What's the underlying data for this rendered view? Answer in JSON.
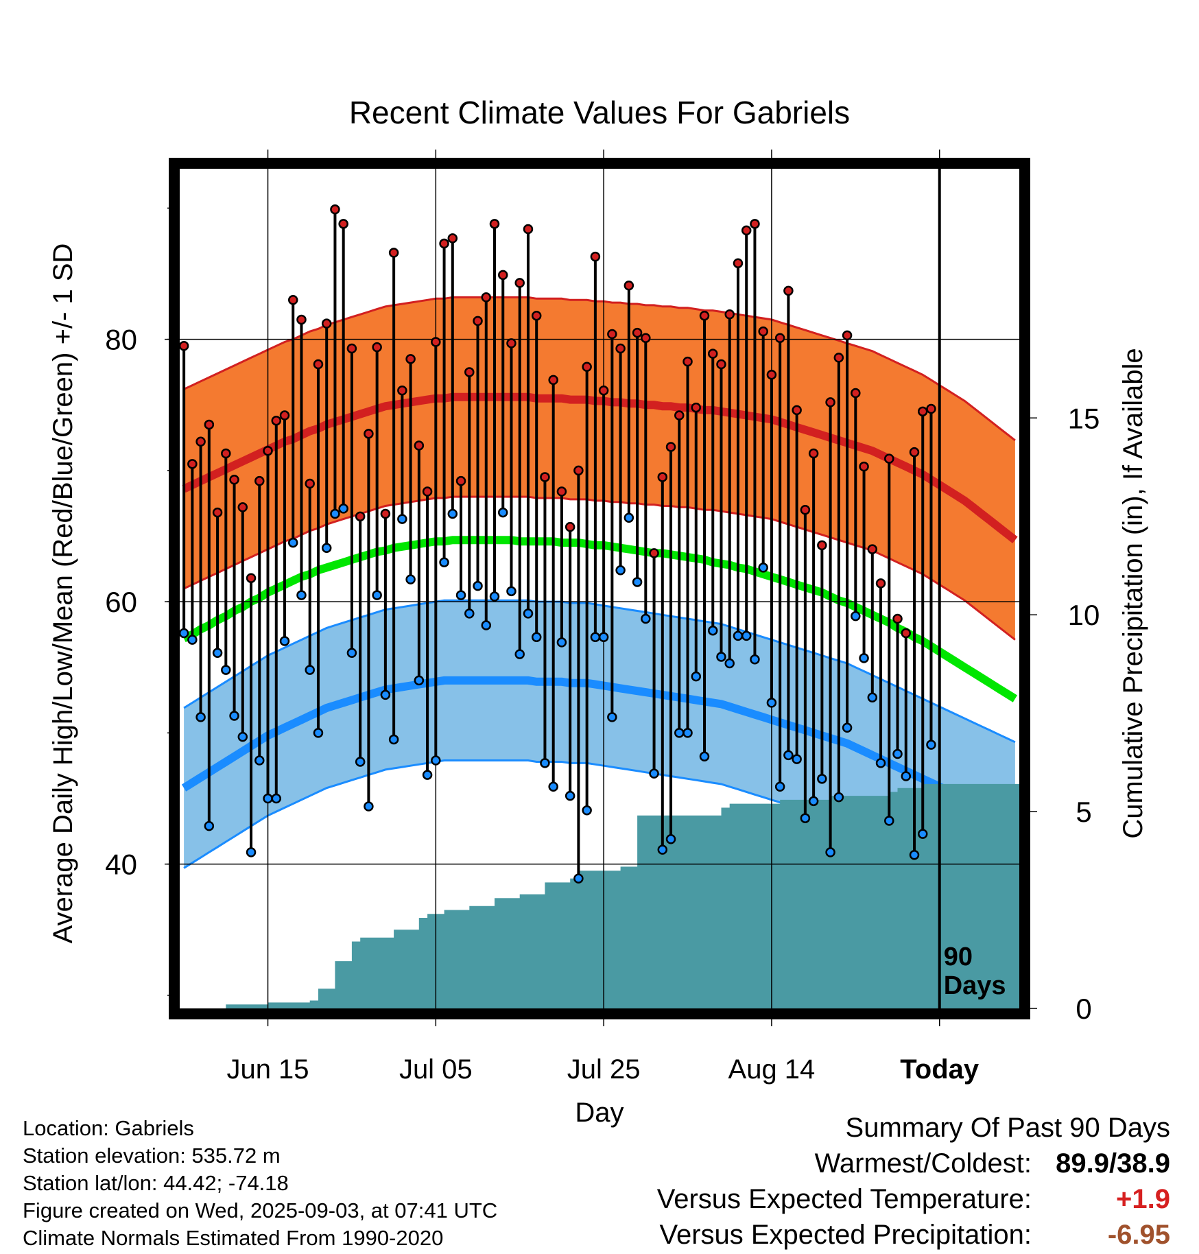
{
  "chart_data": {
    "type": "line",
    "title": "Recent Climate Values For Gabriels",
    "xlabel": "Day",
    "ylabel": "Average Daily High/Low/Mean (Red/Blue/Green) +/- 1 SD",
    "y2label": "Cumulative Precipitation (in), If Available",
    "x_tick_labels": [
      "Jun 15",
      "Jul 05",
      "Jul 25",
      "Aug 14",
      "Today"
    ],
    "x_tick_days": [
      10,
      30,
      50,
      70,
      90
    ],
    "xlim": [
      -0.5,
      99.5
    ],
    "y_ticks": [
      40,
      60,
      80
    ],
    "ylim": [
      29,
      93
    ],
    "y2_ticks": [
      0,
      5,
      10,
      15
    ],
    "y2_scale_per_temp": 0.3333,
    "today_marker_label": [
      "90",
      "Days"
    ],
    "normals": {
      "high_mean": [
        68.6,
        68.9,
        69.2,
        69.5,
        69.8,
        70.1,
        70.4,
        70.7,
        71.0,
        71.3,
        71.6,
        71.9,
        72.2,
        72.4,
        72.7,
        73.0,
        73.2,
        73.5,
        73.7,
        73.9,
        74.1,
        74.3,
        74.5,
        74.7,
        74.9,
        75.0,
        75.1,
        75.2,
        75.3,
        75.4,
        75.5,
        75.5,
        75.6,
        75.6,
        75.6,
        75.6,
        75.6,
        75.6,
        75.6,
        75.6,
        75.6,
        75.6,
        75.5,
        75.5,
        75.5,
        75.5,
        75.4,
        75.4,
        75.4,
        75.3,
        75.3,
        75.2,
        75.2,
        75.1,
        75.1,
        75.0,
        75.0,
        74.9,
        74.9,
        74.8,
        74.8,
        74.7,
        74.6,
        74.6,
        74.5,
        74.4,
        74.3,
        74.2,
        74.1,
        74.0,
        73.9,
        73.7,
        73.5,
        73.3,
        73.1,
        72.9,
        72.7,
        72.5,
        72.3,
        72.1,
        71.9,
        71.7,
        71.5,
        71.2,
        70.9,
        70.6,
        70.3,
        70.0,
        69.7,
        69.3,
        68.9,
        68.5,
        68.1,
        67.7,
        67.2,
        66.7,
        66.2,
        65.7,
        65.2,
        64.7
      ],
      "high_sd": 7.6,
      "low_mean": [
        45.8,
        46.2,
        46.6,
        47.0,
        47.4,
        47.8,
        48.2,
        48.6,
        49.0,
        49.4,
        49.8,
        50.1,
        50.4,
        50.7,
        51.0,
        51.3,
        51.6,
        51.9,
        52.1,
        52.3,
        52.5,
        52.7,
        52.9,
        53.1,
        53.3,
        53.4,
        53.5,
        53.6,
        53.7,
        53.8,
        53.9,
        54.0,
        54.0,
        54.0,
        54.0,
        54.0,
        54.0,
        54.0,
        54.0,
        54.0,
        54.0,
        54.0,
        53.9,
        53.9,
        53.9,
        53.9,
        53.8,
        53.8,
        53.8,
        53.7,
        53.6,
        53.5,
        53.4,
        53.3,
        53.2,
        53.1,
        53.0,
        52.9,
        52.8,
        52.7,
        52.6,
        52.5,
        52.4,
        52.3,
        52.2,
        52.0,
        51.8,
        51.6,
        51.4,
        51.2,
        51.0,
        50.8,
        50.6,
        50.4,
        50.2,
        50.0,
        49.8,
        49.6,
        49.4,
        49.2,
        48.9,
        48.6,
        48.3,
        48.0,
        47.7,
        47.4,
        47.1,
        46.8,
        46.5,
        46.2,
        45.9,
        45.6,
        45.3,
        45.0,
        44.7,
        44.4,
        44.1,
        43.8,
        43.5,
        43.2
      ],
      "low_sd": 6.1,
      "mean": [
        57.2,
        57.5,
        57.9,
        58.2,
        58.6,
        58.9,
        59.3,
        59.6,
        60.0,
        60.3,
        60.7,
        61.0,
        61.3,
        61.6,
        61.9,
        62.1,
        62.4,
        62.6,
        62.8,
        63.0,
        63.2,
        63.4,
        63.6,
        63.8,
        63.9,
        64.1,
        64.2,
        64.3,
        64.4,
        64.5,
        64.6,
        64.6,
        64.7,
        64.7,
        64.7,
        64.7,
        64.7,
        64.7,
        64.7,
        64.7,
        64.6,
        64.6,
        64.6,
        64.6,
        64.6,
        64.5,
        64.5,
        64.5,
        64.4,
        64.3,
        64.3,
        64.2,
        64.1,
        64.0,
        63.9,
        63.8,
        63.7,
        63.7,
        63.6,
        63.5,
        63.4,
        63.3,
        63.2,
        63.0,
        62.9,
        62.8,
        62.6,
        62.5,
        62.3,
        62.1,
        61.9,
        61.7,
        61.5,
        61.3,
        61.1,
        60.9,
        60.7,
        60.4,
        60.1,
        59.9,
        59.6,
        59.3,
        59.0,
        58.7,
        58.4,
        58.0,
        57.7,
        57.3,
        57.0,
        56.6,
        56.2,
        55.8,
        55.4,
        55.0,
        54.6,
        54.2,
        53.8,
        53.4,
        53.0,
        52.6
      ]
    },
    "highs": [
      79.5,
      70.5,
      72.2,
      73.5,
      66.8,
      71.3,
      69.3,
      67.2,
      61.8,
      69.2,
      71.5,
      73.8,
      74.2,
      83.0,
      81.5,
      69.0,
      78.1,
      81.2,
      89.9,
      88.8,
      79.3,
      66.5,
      72.8,
      79.4,
      66.7,
      86.6,
      76.1,
      78.5,
      71.9,
      68.4,
      79.8,
      87.3,
      87.7,
      69.2,
      77.5,
      81.4,
      83.2,
      88.8,
      84.9,
      79.7,
      84.3,
      88.4,
      81.8,
      69.5,
      76.9,
      68.4,
      65.7,
      70.0,
      77.9,
      86.3,
      76.1,
      80.4,
      79.3,
      84.1,
      80.5,
      80.1,
      63.7,
      69.5,
      71.8,
      74.2,
      78.3,
      74.8,
      81.8,
      78.9,
      78.1,
      81.9,
      85.8,
      88.3,
      88.8,
      80.6,
      77.3,
      80.1,
      83.7,
      74.6,
      67.0,
      71.3,
      64.3,
      75.2,
      78.6,
      80.3,
      75.9,
      70.3,
      64.0,
      61.4,
      70.9,
      58.7,
      57.6,
      71.4,
      74.5,
      74.7
    ],
    "lows": [
      57.6,
      57.1,
      51.2,
      42.9,
      56.1,
      54.8,
      51.3,
      49.7,
      40.9,
      47.9,
      45.0,
      45.0,
      57.0,
      64.5,
      60.5,
      54.8,
      50.0,
      64.1,
      66.7,
      67.1,
      56.1,
      47.8,
      44.4,
      60.5,
      52.9,
      49.5,
      66.3,
      61.7,
      54.0,
      46.8,
      47.9,
      63.0,
      66.7,
      60.5,
      59.1,
      61.2,
      58.2,
      60.4,
      66.8,
      60.8,
      56.0,
      59.1,
      57.3,
      47.7,
      45.9,
      56.9,
      45.2,
      38.9,
      44.1,
      57.3,
      57.3,
      51.2,
      62.4,
      66.4,
      61.5,
      58.7,
      46.9,
      41.1,
      41.9,
      50.0,
      50.0,
      54.3,
      48.2,
      57.8,
      55.8,
      55.3,
      57.4,
      57.4,
      55.6,
      62.6,
      52.3,
      45.9,
      48.3,
      48.0,
      43.5,
      44.8,
      46.5,
      40.9,
      45.1,
      50.4,
      58.9,
      55.7,
      52.7,
      47.7,
      43.3,
      48.4,
      46.7,
      40.7,
      42.3,
      49.1
    ],
    "cumulative_precip": [
      0,
      0,
      0,
      0,
      0,
      0.1,
      0.1,
      0.1,
      0.1,
      0.1,
      0.15,
      0.15,
      0.15,
      0.15,
      0.15,
      0.2,
      0.5,
      0.5,
      1.2,
      1.2,
      1.7,
      1.8,
      1.8,
      1.8,
      1.8,
      2.0,
      2.0,
      2.0,
      2.3,
      2.4,
      2.4,
      2.5,
      2.5,
      2.5,
      2.6,
      2.6,
      2.6,
      2.8,
      2.8,
      2.8,
      2.9,
      2.9,
      2.9,
      3.2,
      3.2,
      3.2,
      3.3,
      3.5,
      3.5,
      3.5,
      3.5,
      3.5,
      3.6,
      3.6,
      4.9,
      4.9,
      4.9,
      4.9,
      4.9,
      4.9,
      4.9,
      4.9,
      4.9,
      4.9,
      5.1,
      5.2,
      5.2,
      5.2,
      5.2,
      5.2,
      5.2,
      5.3,
      5.3,
      5.3,
      5.3,
      5.3,
      5.3,
      5.4,
      5.4,
      5.4,
      5.4,
      5.4,
      5.4,
      5.4,
      5.5,
      5.6,
      5.6,
      5.6,
      5.7,
      5.7
    ],
    "grid": true,
    "legend": "none"
  },
  "info": [
    "Location: Gabriels",
    "Station elevation: 535.72 m",
    "Station lat/lon: 44.42; -74.18",
    "Figure created on Wed, 2025-09-03, at 07:41 UTC",
    "Climate Normals Estimated From 1990-2020"
  ],
  "summary": {
    "heading": "Summary Of Past 90 Days",
    "rows": [
      {
        "label": "Warmest/Coldest:",
        "value": "89.9/38.9",
        "color": "#000000"
      },
      {
        "label": "Versus Expected Temperature:",
        "value": "+1.9",
        "color": "#d62020"
      },
      {
        "label": "Versus Expected Precipitation:",
        "value": "-6.95",
        "color": "#a0522d"
      }
    ]
  },
  "colors": {
    "high_band": "#f47a30",
    "high_band_edge": "#d22020",
    "high_line": "#d22020",
    "low_band": "#87c1e8",
    "low_band_edge": "#1a8cff",
    "low_line": "#1a8cff",
    "mean_line": "#00e600",
    "precip_fill": "#4a9aa3",
    "high_dot": "#d22020",
    "low_dot": "#1a8cff"
  }
}
